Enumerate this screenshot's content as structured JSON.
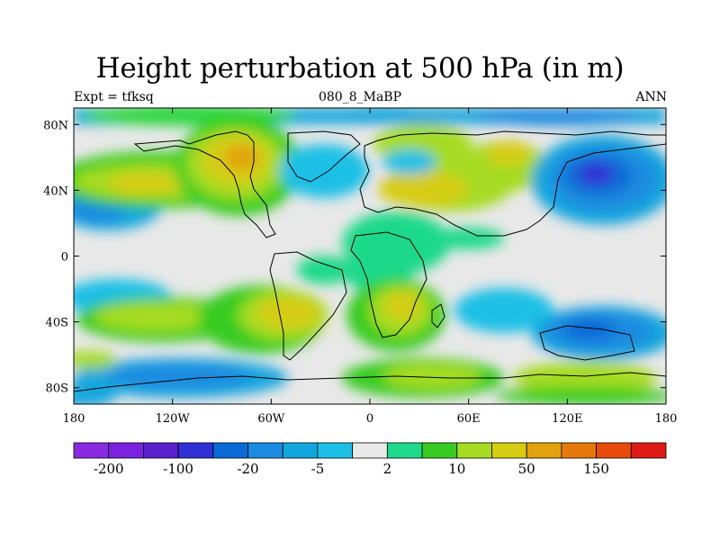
{
  "figure": {
    "title": "Height perturbation at 500 hPa (in m)",
    "left_label": "Expt = tfksq",
    "center_label": "080_8_MaBP",
    "right_label": "ANN"
  },
  "map": {
    "projection": "cylindrical-equidistant",
    "lon_range": [
      -180,
      180
    ],
    "lat_range": [
      -90,
      90
    ],
    "x_ticks": [
      {
        "lon": -180,
        "label": "180"
      },
      {
        "lon": -120,
        "label": "120W"
      },
      {
        "lon": -60,
        "label": "60W"
      },
      {
        "lon": 0,
        "label": "0"
      },
      {
        "lon": 60,
        "label": "60E"
      },
      {
        "lon": 120,
        "label": "120E"
      },
      {
        "lon": 180,
        "label": "180"
      }
    ],
    "y_ticks": [
      {
        "lat": 80,
        "label": "80N"
      },
      {
        "lat": 40,
        "label": "40N"
      },
      {
        "lat": 0,
        "label": "0"
      },
      {
        "lat": -40,
        "label": "40S"
      },
      {
        "lat": -80,
        "label": "80S"
      }
    ],
    "coastline_color": "#000000"
  },
  "colorbar": {
    "colors": [
      "#8a2be2",
      "#7a22e0",
      "#5a20cc",
      "#3030d6",
      "#0a6ad6",
      "#1a8be0",
      "#12a6de",
      "#1cc0e6",
      "#e8e8e8",
      "#1fd98a",
      "#38cc22",
      "#a6dc22",
      "#d6cc12",
      "#e2a20e",
      "#e57a0a",
      "#e84a0a",
      "#e01a14"
    ],
    "labels": [
      {
        "after_box": 1,
        "label": "-200"
      },
      {
        "after_box": 3,
        "label": "-100"
      },
      {
        "after_box": 5,
        "label": "-20"
      },
      {
        "after_box": 7,
        "label": "-5"
      },
      {
        "after_box": 9,
        "label": "2"
      },
      {
        "after_box": 11,
        "label": "10"
      },
      {
        "after_box": 13,
        "label": "50"
      },
      {
        "after_box": 15,
        "label": "150"
      }
    ]
  }
}
